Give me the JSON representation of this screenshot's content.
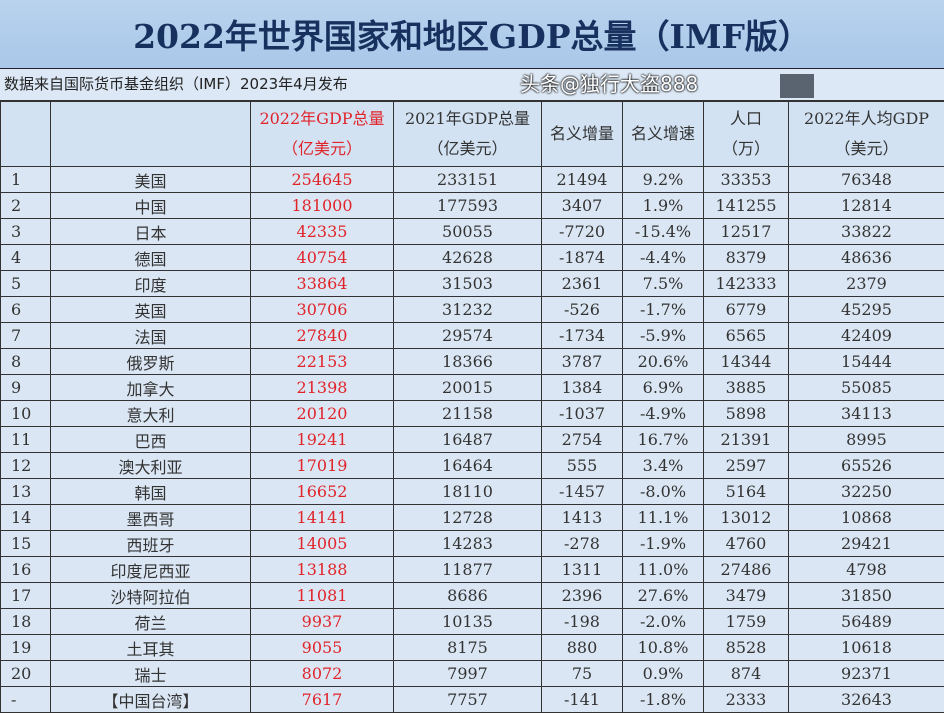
{
  "title": "2022年世界国家和地区GDP总量（IMF版）",
  "subtitle": "数据来自国际货币基金组织（IMF）2023年4月发布",
  "headers": {
    "gdp2022": "2022年GDP总量",
    "gdp2022_unit": "（亿美元）",
    "gdp2021": "2021年GDP总量",
    "gdp2021_unit": "（亿美元）",
    "inc": "名义增量",
    "rate": "名义增速",
    "pop": "人口",
    "pop_unit": "（万）",
    "pc": "2022年人均GDP",
    "pc_unit": "（美元）"
  },
  "rows": [
    [
      "1",
      "美国",
      "254645",
      "233151",
      "21494",
      "9.2%",
      "33353",
      "76348"
    ],
    [
      "2",
      "中国",
      "181000",
      "177593",
      "3407",
      "1.9%",
      "141255",
      "12814"
    ],
    [
      "3",
      "日本",
      "42335",
      "50055",
      "-7720",
      "-15.4%",
      "12517",
      "33822"
    ],
    [
      "4",
      "德国",
      "40754",
      "42628",
      "-1874",
      "-4.4%",
      "8379",
      "48636"
    ],
    [
      "5",
      "印度",
      "33864",
      "31503",
      "2361",
      "7.5%",
      "142333",
      "2379"
    ],
    [
      "6",
      "英国",
      "30706",
      "31232",
      "-526",
      "-1.7%",
      "6779",
      "45295"
    ],
    [
      "7",
      "法国",
      "27840",
      "29574",
      "-1734",
      "-5.9%",
      "6565",
      "42409"
    ],
    [
      "8",
      "俄罗斯",
      "22153",
      "18366",
      "3787",
      "20.6%",
      "14344",
      "15444"
    ],
    [
      "9",
      "加拿大",
      "21398",
      "20015",
      "1384",
      "6.9%",
      "3885",
      "55085"
    ],
    [
      "10",
      "意大利",
      "20120",
      "21158",
      "-1037",
      "-4.9%",
      "5898",
      "34113"
    ],
    [
      "11",
      "巴西",
      "19241",
      "16487",
      "2754",
      "16.7%",
      "21391",
      "8995"
    ],
    [
      "12",
      "澳大利亚",
      "17019",
      "16464",
      "555",
      "3.4%",
      "2597",
      "65526"
    ],
    [
      "13",
      "韩国",
      "16652",
      "18110",
      "-1457",
      "-8.0%",
      "5164",
      "32250"
    ],
    [
      "14",
      "墨西哥",
      "14141",
      "12728",
      "1413",
      "11.1%",
      "13012",
      "10868"
    ],
    [
      "15",
      "西班牙",
      "14005",
      "14283",
      "-278",
      "-1.9%",
      "4760",
      "29421"
    ],
    [
      "16",
      "印度尼西亚",
      "13188",
      "11877",
      "1311",
      "11.0%",
      "27486",
      "4798"
    ],
    [
      "17",
      "沙特阿拉伯",
      "11081",
      "8686",
      "2396",
      "27.6%",
      "3479",
      "31850"
    ],
    [
      "18",
      "荷兰",
      "9937",
      "10135",
      "-198",
      "-2.0%",
      "1759",
      "56489"
    ],
    [
      "19",
      "土耳其",
      "9055",
      "8175",
      "880",
      "10.8%",
      "8528",
      "10618"
    ],
    [
      "20",
      "瑞士",
      "8072",
      "7997",
      "75",
      "0.9%",
      "874",
      "92371"
    ],
    [
      "-",
      "【中国台湾】",
      "7617",
      "7757",
      "-141",
      "-1.8%",
      "2333",
      "32643"
    ]
  ],
  "watermark": "头条@独行大盗888"
}
